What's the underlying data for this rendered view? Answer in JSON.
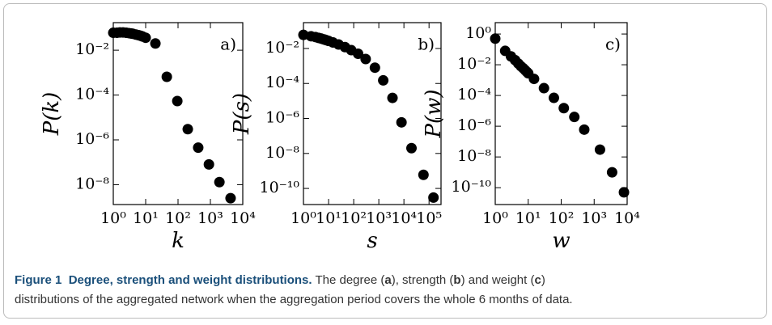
{
  "chart_data": [
    {
      "type": "scatter",
      "panel_label": "a)",
      "xlabel": "k",
      "ylabel": "P(k)",
      "log_x": true,
      "log_y": true,
      "color": "#000000",
      "x": [
        1,
        1.3,
        1.6,
        2,
        2.5,
        3,
        3.5,
        4,
        5,
        6,
        7,
        8,
        10,
        20,
        45,
        95,
        200,
        420,
        900,
        1900,
        4200
      ],
      "values": [
        0.06,
        0.06,
        0.062,
        0.062,
        0.06,
        0.058,
        0.056,
        0.054,
        0.05,
        0.047,
        0.044,
        0.041,
        0.036,
        0.02,
        0.00065,
        5.4e-05,
        3e-06,
        4.5e-07,
        8e-08,
        1.3e-08,
        2.5e-09
      ],
      "xlim": [
        1,
        10000
      ],
      "ylim": [
        1.3e-09,
        0.17
      ],
      "xticks": [
        {
          "value": 1,
          "label": "10⁰"
        },
        {
          "value": 10,
          "label": "10¹"
        },
        {
          "value": 100,
          "label": "10²"
        },
        {
          "value": 1000,
          "label": "10³"
        },
        {
          "value": 10000,
          "label": "10⁴"
        }
      ],
      "yticks": [
        {
          "value": 0.01,
          "label": "10⁻²"
        },
        {
          "value": 0.0001,
          "label": "10⁻⁴"
        },
        {
          "value": 1e-06,
          "label": "10⁻⁶"
        },
        {
          "value": 1e-08,
          "label": "10⁻⁸"
        }
      ]
    },
    {
      "type": "scatter",
      "panel_label": "b)",
      "xlabel": "s",
      "ylabel": "P(s)",
      "log_x": true,
      "log_y": true,
      "color": "#000000",
      "x": [
        1,
        2,
        3,
        4,
        5,
        6,
        7,
        8,
        10,
        15,
        25,
        45,
        80,
        150,
        300,
        700,
        1500,
        3500,
        8000,
        20000,
        60000,
        150000
      ],
      "values": [
        0.06,
        0.05,
        0.045,
        0.04,
        0.037,
        0.034,
        0.032,
        0.03,
        0.027,
        0.022,
        0.017,
        0.012,
        0.008,
        0.005,
        0.0025,
        0.0008,
        0.00015,
        1.5e-05,
        6e-07,
        2e-08,
        6e-10,
        3e-11
      ],
      "xlim": [
        1,
        300000
      ],
      "ylim": [
        1.2e-11,
        0.3
      ],
      "xticks": [
        {
          "value": 1,
          "label": "10⁰"
        },
        {
          "value": 10,
          "label": "10¹"
        },
        {
          "value": 100,
          "label": "10²"
        },
        {
          "value": 1000,
          "label": "10³"
        },
        {
          "value": 10000,
          "label": "10⁴"
        },
        {
          "value": 100000,
          "label": "10⁵"
        }
      ],
      "yticks": [
        {
          "value": 0.01,
          "label": "10⁻²"
        },
        {
          "value": 0.0001,
          "label": "10⁻⁴"
        },
        {
          "value": 1e-06,
          "label": "10⁻⁶"
        },
        {
          "value": 1e-08,
          "label": "10⁻⁸"
        },
        {
          "value": 1e-10,
          "label": "10⁻¹⁰"
        }
      ]
    },
    {
      "type": "scatter",
      "panel_label": "c)",
      "xlabel": "w",
      "ylabel": "P(w)",
      "log_x": true,
      "log_y": true,
      "color": "#000000",
      "x": [
        1,
        2,
        3,
        4,
        5,
        6,
        7,
        8,
        9,
        10,
        15,
        30,
        60,
        120,
        250,
        500,
        1500,
        3500,
        8000
      ],
      "values": [
        0.5,
        0.08,
        0.035,
        0.02,
        0.012,
        0.008,
        0.006,
        0.0045,
        0.0035,
        0.0028,
        0.0012,
        0.0003,
        7e-05,
        1.5e-05,
        4e-06,
        6e-07,
        3e-08,
        1e-09,
        5e-11
      ],
      "xlim": [
        1,
        10000
      ],
      "ylim": [
        8e-12,
        5.5
      ],
      "xticks": [
        {
          "value": 1,
          "label": "10⁰"
        },
        {
          "value": 10,
          "label": "10¹"
        },
        {
          "value": 100,
          "label": "10²"
        },
        {
          "value": 1000,
          "label": "10³"
        },
        {
          "value": 10000,
          "label": "10⁴"
        }
      ],
      "yticks": [
        {
          "value": 1,
          "label": "10⁰"
        },
        {
          "value": 0.01,
          "label": "10⁻²"
        },
        {
          "value": 0.0001,
          "label": "10⁻⁴"
        },
        {
          "value": 1e-06,
          "label": "10⁻⁶"
        },
        {
          "value": 1e-08,
          "label": "10⁻⁸"
        },
        {
          "value": 1e-10,
          "label": "10⁻¹⁰"
        }
      ]
    }
  ],
  "caption": {
    "label": "Figure 1",
    "title": "Degree, strength and weight distributions.",
    "body": [
      "The degree (",
      "a",
      "), strength (",
      "b",
      ") and weight (",
      "c",
      ")",
      "distributions of the aggregated network when the aggregation period covers the whole 6 months of data."
    ]
  }
}
